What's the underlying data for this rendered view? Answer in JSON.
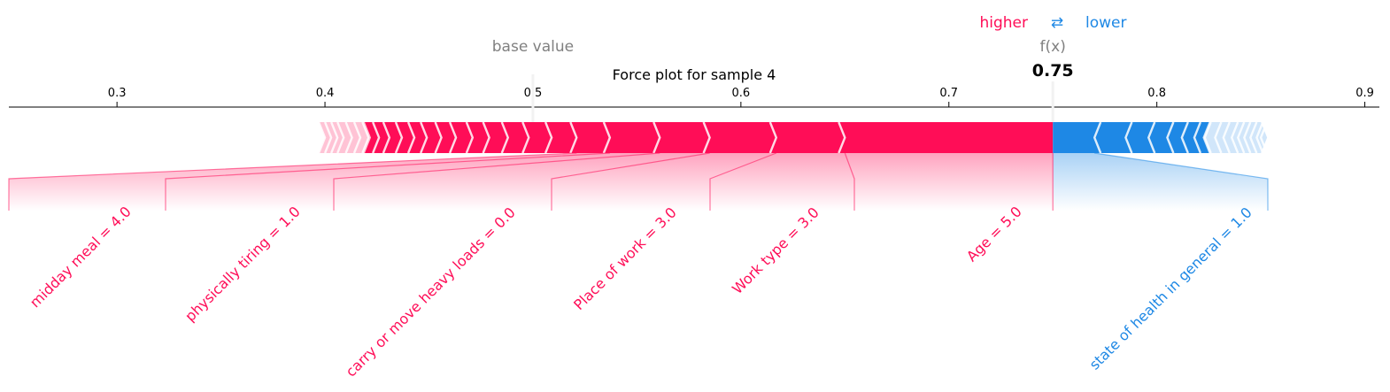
{
  "chart_data": {
    "type": "force",
    "title": "Force plot for sample 4",
    "base_value": 0.5,
    "output_value": 0.75,
    "output_value_label": "0.75",
    "base_value_label": "base value",
    "fx_label": "f(x)",
    "legend": {
      "higher": "higher",
      "arrows": "⇄",
      "lower": "lower"
    },
    "xlim": [
      0.248,
      0.907
    ],
    "ticks": [
      {
        "v": 0.3,
        "label": "0.3"
      },
      {
        "v": 0.4,
        "label": "0.4"
      },
      {
        "v": 0.5,
        "label": "0.5"
      },
      {
        "v": 0.6,
        "label": "0.6"
      },
      {
        "v": 0.7,
        "label": "0.7"
      },
      {
        "v": 0.8,
        "label": "0.8"
      },
      {
        "v": 0.9,
        "label": "0.9"
      }
    ],
    "positive_range": [
      0.397,
      0.75
    ],
    "negative_range": [
      0.75,
      0.853
    ],
    "positive_boundaries": [
      0.65,
      0.617,
      0.585,
      0.561,
      0.537,
      0.521,
      0.509,
      0.498,
      0.488,
      0.479,
      0.471,
      0.463,
      0.456,
      0.449,
      0.443,
      0.437,
      0.431,
      0.426,
      0.421,
      0.417,
      0.413,
      0.409,
      0.406,
      0.403,
      0.4
    ],
    "negative_boundaries": [
      0.77,
      0.785,
      0.796,
      0.805,
      0.812,
      0.818,
      0.823,
      0.828,
      0.832,
      0.836,
      0.839,
      0.842,
      0.845,
      0.848,
      0.85
    ],
    "features": [
      {
        "label": "Age = 5.0",
        "direction": "positive",
        "seg_left": 0.65,
        "seg_right": 0.75
      },
      {
        "label": "Work type = 3.0",
        "direction": "positive",
        "seg_left": 0.617,
        "seg_right": 0.65
      },
      {
        "label": "Place of work = 3.0",
        "direction": "positive",
        "seg_left": 0.585,
        "seg_right": 0.617
      },
      {
        "label": "carry or move heavy loads = 0.0",
        "direction": "positive",
        "seg_left": 0.561,
        "seg_right": 0.585
      },
      {
        "label": "physically tiring = 1.0",
        "direction": "positive",
        "seg_left": 0.537,
        "seg_right": 0.561
      },
      {
        "label": "midday meal = 4.0",
        "direction": "positive",
        "seg_left": 0.521,
        "seg_right": 0.537
      },
      {
        "label": "state of health in general = 1.0",
        "direction": "negative",
        "seg_left": 0.75,
        "seg_right": 0.77
      }
    ],
    "colors": {
      "positive": "#ff0d57",
      "negative": "#1e88e5",
      "positive_faded": "#ffc3d5",
      "negative_faded": "#d1e6fa",
      "axis": "#000000",
      "base_line": "#f2f2f2",
      "muted_text": "#808080"
    }
  }
}
